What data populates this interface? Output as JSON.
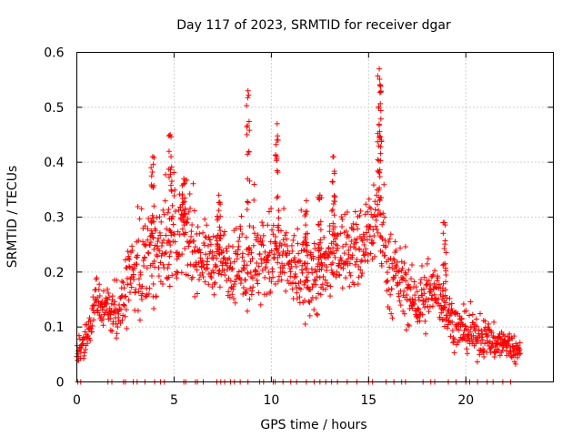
{
  "chart_data": {
    "type": "scatter",
    "title": "Day 117 of 2023, SRMTID for receiver dgar",
    "xlabel": "GPS time / hours",
    "ylabel": "SRMTID / TECUs",
    "xlim": [
      0,
      24.5
    ],
    "ylim": [
      0,
      0.6
    ],
    "x_ticks": [
      0,
      5,
      10,
      15,
      20
    ],
    "x_tick_labels": [
      "0",
      "5",
      "10",
      "15",
      "20"
    ],
    "y_ticks": [
      0,
      0.1,
      0.2,
      0.3,
      0.4,
      0.5,
      0.6
    ],
    "y_tick_labels": [
      "0",
      "0.1",
      "0.2",
      "0.3",
      "0.4",
      "0.5",
      "0.6"
    ],
    "grid": true,
    "marker": "+",
    "color": "#ff0000",
    "trend": [
      [
        0.0,
        0.05
      ],
      [
        0.3,
        0.06
      ],
      [
        0.6,
        0.09
      ],
      [
        1.0,
        0.15
      ],
      [
        1.5,
        0.13
      ],
      [
        2.0,
        0.12
      ],
      [
        2.5,
        0.16
      ],
      [
        3.0,
        0.21
      ],
      [
        3.5,
        0.22
      ],
      [
        4.0,
        0.23
      ],
      [
        4.5,
        0.25
      ],
      [
        5.0,
        0.26
      ],
      [
        5.5,
        0.27
      ],
      [
        6.0,
        0.24
      ],
      [
        6.5,
        0.23
      ],
      [
        7.0,
        0.22
      ],
      [
        7.5,
        0.22
      ],
      [
        8.0,
        0.21
      ],
      [
        8.5,
        0.21
      ],
      [
        9.0,
        0.22
      ],
      [
        9.5,
        0.22
      ],
      [
        10.0,
        0.23
      ],
      [
        10.5,
        0.22
      ],
      [
        11.0,
        0.21
      ],
      [
        11.5,
        0.19
      ],
      [
        12.0,
        0.19
      ],
      [
        12.5,
        0.19
      ],
      [
        13.0,
        0.21
      ],
      [
        13.5,
        0.24
      ],
      [
        14.0,
        0.24
      ],
      [
        14.5,
        0.24
      ],
      [
        15.0,
        0.27
      ],
      [
        15.5,
        0.31
      ],
      [
        16.0,
        0.2
      ],
      [
        16.5,
        0.19
      ],
      [
        17.0,
        0.16
      ],
      [
        17.5,
        0.14
      ],
      [
        18.0,
        0.15
      ],
      [
        18.5,
        0.17
      ],
      [
        19.0,
        0.13
      ],
      [
        19.5,
        0.1
      ],
      [
        20.0,
        0.09
      ],
      [
        20.5,
        0.08
      ],
      [
        21.0,
        0.08
      ],
      [
        21.5,
        0.07
      ],
      [
        22.0,
        0.07
      ],
      [
        22.5,
        0.06
      ],
      [
        22.8,
        0.05
      ]
    ],
    "spread": [
      [
        0.0,
        0.02
      ],
      [
        1.0,
        0.04
      ],
      [
        2.0,
        0.04
      ],
      [
        3.0,
        0.07
      ],
      [
        4.0,
        0.07
      ],
      [
        5.0,
        0.08
      ],
      [
        6.0,
        0.06
      ],
      [
        7.0,
        0.05
      ],
      [
        8.0,
        0.06
      ],
      [
        9.0,
        0.07
      ],
      [
        10.0,
        0.08
      ],
      [
        11.0,
        0.06
      ],
      [
        12.0,
        0.06
      ],
      [
        13.0,
        0.07
      ],
      [
        14.0,
        0.06
      ],
      [
        15.0,
        0.08
      ],
      [
        16.0,
        0.06
      ],
      [
        17.0,
        0.05
      ],
      [
        18.0,
        0.05
      ],
      [
        19.0,
        0.04
      ],
      [
        20.0,
        0.03
      ],
      [
        21.0,
        0.03
      ],
      [
        22.0,
        0.025
      ],
      [
        22.8,
        0.02
      ]
    ],
    "peaks": [
      {
        "x": 4.8,
        "y": 0.45
      },
      {
        "x": 8.8,
        "y": 0.53
      },
      {
        "x": 10.3,
        "y": 0.47
      },
      {
        "x": 3.9,
        "y": 0.41
      },
      {
        "x": 13.2,
        "y": 0.41
      },
      {
        "x": 15.55,
        "y": 0.57
      },
      {
        "x": 15.6,
        "y": 0.54
      },
      {
        "x": 18.9,
        "y": 0.29
      },
      {
        "x": 7.3,
        "y": 0.34
      },
      {
        "x": 5.5,
        "y": 0.37
      },
      {
        "x": 11.8,
        "y": 0.33
      },
      {
        "x": 12.5,
        "y": 0.34
      }
    ],
    "zero_points_x": [
      0.05,
      0.2,
      1.6,
      1.8,
      2.4,
      2.5,
      2.9,
      3.1,
      3.5,
      4.0,
      4.3,
      4.5,
      5.5,
      5.6,
      6.1,
      6.2,
      6.5,
      7.2,
      7.4,
      7.6,
      7.9,
      8.1,
      8.4,
      8.8,
      9.4,
      9.6,
      10.1,
      10.2,
      10.6,
      11.0,
      11.3,
      11.8,
      12.2,
      12.5,
      12.8,
      13.1,
      13.4,
      13.9,
      14.4,
      15.0,
      15.2,
      15.9,
      16.3,
      16.7,
      16.9,
      17.8,
      18.2,
      18.4,
      19.1,
      19.5,
      20.0,
      20.2,
      20.6,
      21.1,
      21.4,
      21.9,
      22.3
    ]
  }
}
